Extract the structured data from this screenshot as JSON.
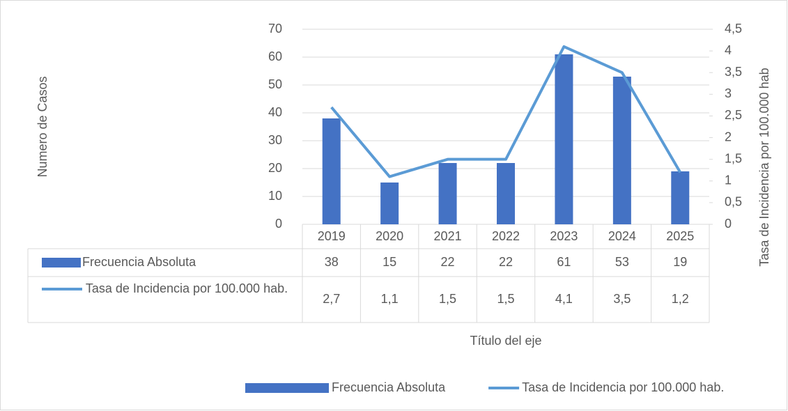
{
  "chart_data": {
    "type": "bar-line",
    "y_label": "Numero de Casos",
    "y2_label": "Tasa de Incidencia por 100.000 hab",
    "x_label": "Título del eje",
    "categories": [
      "2019",
      "2020",
      "2021",
      "2022",
      "2023",
      "2024",
      "2025"
    ],
    "series": [
      {
        "name": "Frecuencia Absoluta",
        "color": "#4472c4",
        "type": "bar",
        "values": [
          38,
          15,
          22,
          22,
          61,
          53,
          19
        ]
      },
      {
        "name": "Tasa de Incidencia por 100.000 hab.",
        "color": "#5b9bd5",
        "type": "line",
        "axis": "y2",
        "values": [
          2.7,
          1.1,
          1.5,
          1.5,
          4.1,
          3.5,
          1.2
        ],
        "value_labels": [
          "2,7",
          "1,1",
          "1,5",
          "1,5",
          "4,1",
          "3,5",
          "1,2"
        ]
      }
    ],
    "ylim": [
      0,
      70
    ],
    "yticks": [
      0,
      10,
      20,
      30,
      40,
      50,
      60,
      70
    ],
    "y2lim": [
      0,
      4.5
    ],
    "y2ticks": [
      0,
      {
        "value": 0.5,
        "label": "0,5"
      },
      1,
      {
        "value": 1.5,
        "label": "1,5"
      },
      2,
      {
        "value": 2.5,
        "label": "2,5"
      },
      3,
      {
        "value": 3.5,
        "label": "3,5"
      },
      4,
      {
        "value": 4.5,
        "label": "4,5"
      }
    ],
    "grid": true,
    "legend": "bottom"
  }
}
